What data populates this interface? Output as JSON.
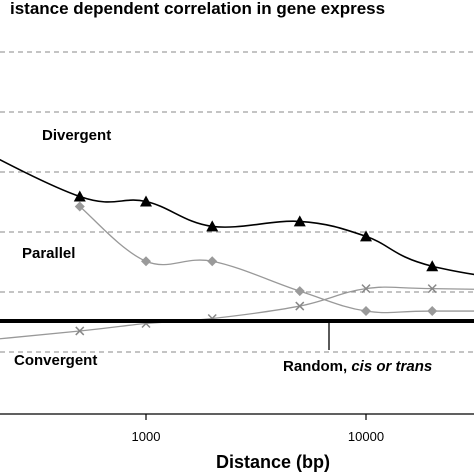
{
  "chart_data": {
    "type": "line",
    "title": "istance dependent correlation in gene express",
    "xlabel": "Distance (bp)",
    "ylabel": "",
    "x_scale": "log",
    "xlim": [
      100,
      100000
    ],
    "x_ticks": [
      {
        "value": 1000,
        "label": "1000"
      },
      {
        "value": 10000,
        "label": "10000"
      }
    ],
    "ylim": [
      0,
      1
    ],
    "y_gridlines": [
      0.5,
      1.5,
      2.5,
      3.5,
      4.5,
      5.5
    ],
    "grid": true,
    "series": [
      {
        "name": "Divergent",
        "color": "#000000",
        "marker": "triangle",
        "x": [
          500,
          1000,
          2000,
          5000,
          10000,
          20000
        ],
        "y": [
          0.5,
          0.48,
          0.38,
          0.4,
          0.34,
          0.22
        ],
        "x_extra_start": [
          [
            100,
            0.82
          ],
          [
            130,
            0.75
          ]
        ],
        "x_extra_end": [
          [
            100000,
            0.12
          ]
        ]
      },
      {
        "name": "Parallel",
        "color": "#999999",
        "marker": "diamond",
        "x": [
          500,
          1000,
          2000,
          5000,
          10000,
          20000
        ],
        "y": [
          0.46,
          0.24,
          0.24,
          0.12,
          0.04,
          0.04
        ],
        "x_extra_end": [
          [
            100000,
            0.04
          ]
        ]
      },
      {
        "name": "Convergent",
        "color": "#999999",
        "marker": "x",
        "x": [
          500,
          1000,
          2000,
          5000,
          10000,
          20000
        ],
        "y": [
          -0.04,
          -0.01,
          0.01,
          0.06,
          0.13,
          0.13
        ],
        "x_extra_start": [
          [
            100,
            -0.1
          ]
        ],
        "x_extra_end": [
          [
            100000,
            0.12
          ]
        ]
      }
    ],
    "reference_line": {
      "name": "Random, cis or trans",
      "value": 0.05
    },
    "annotations": {
      "divergent": "Divergent",
      "parallel": "Parallel",
      "convergent": "Convergent",
      "random_prefix": "Random, ",
      "random_italic": "cis or trans"
    }
  }
}
